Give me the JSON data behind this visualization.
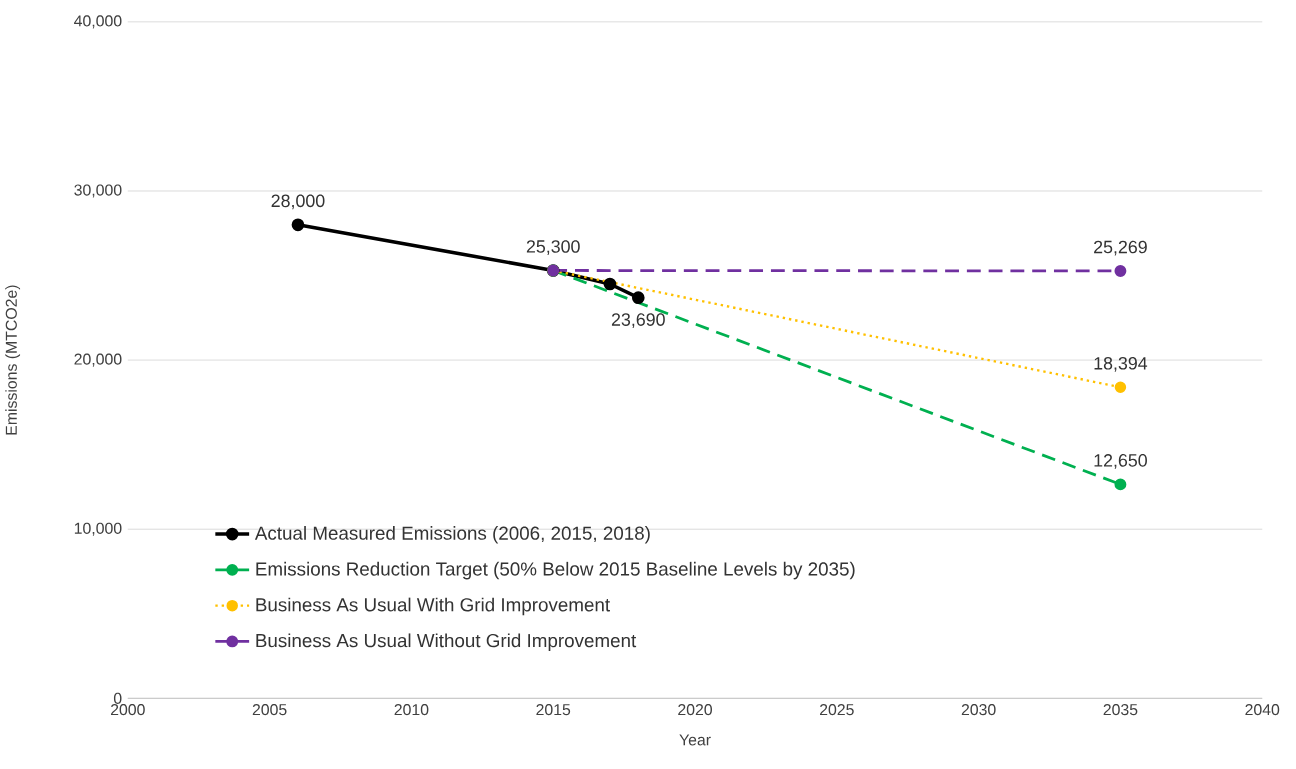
{
  "chart_data": {
    "type": "line",
    "xlabel": "Year",
    "ylabel": "Emissions (MTCO2e)",
    "xlim": [
      2000,
      2040
    ],
    "xticks": [
      2000,
      2005,
      2010,
      2015,
      2020,
      2025,
      2030,
      2035,
      2040
    ],
    "ylim": [
      0,
      40000
    ],
    "yticks": [
      {
        "value": 0,
        "label": "0"
      },
      {
        "value": 10000,
        "label": "10,000"
      },
      {
        "value": 20000,
        "label": "20,000"
      },
      {
        "value": 30000,
        "label": "30,000"
      },
      {
        "value": 40000,
        "label": "40,000"
      }
    ],
    "grid": "y",
    "legend": "bottom left",
    "marker": "circle",
    "series": [
      {
        "name": "Actual Measured Emissions (2006, 2015, 2018)",
        "color": "#000000",
        "line_style": "solid",
        "x": [
          2006,
          2015,
          2017,
          2018
        ],
        "values": [
          28000,
          25300,
          24500,
          23690
        ],
        "value_labels": [
          "28,000",
          "25,300",
          null,
          "23,690"
        ]
      },
      {
        "name": "Emissions Reduction Target (50% Below 2015 Baseline Levels by 2035)",
        "color": "#00b050",
        "line_style": "dashed",
        "x": [
          2015,
          2035
        ],
        "values": [
          25300,
          12650
        ],
        "value_labels": [
          null,
          "12,650"
        ]
      },
      {
        "name": "Business As Usual With Grid Improvement",
        "color": "#ffc000",
        "line_style": "dotted",
        "x": [
          2015,
          2035
        ],
        "values": [
          25300,
          18394
        ],
        "value_labels": [
          null,
          "18,394"
        ]
      },
      {
        "name": "Business As Usual Without Grid Improvement",
        "color": "#7030a0",
        "line_style": "dashed",
        "x": [
          2015,
          2035
        ],
        "values": [
          25300,
          25269
        ],
        "value_labels": [
          null,
          "25,269"
        ]
      }
    ]
  }
}
